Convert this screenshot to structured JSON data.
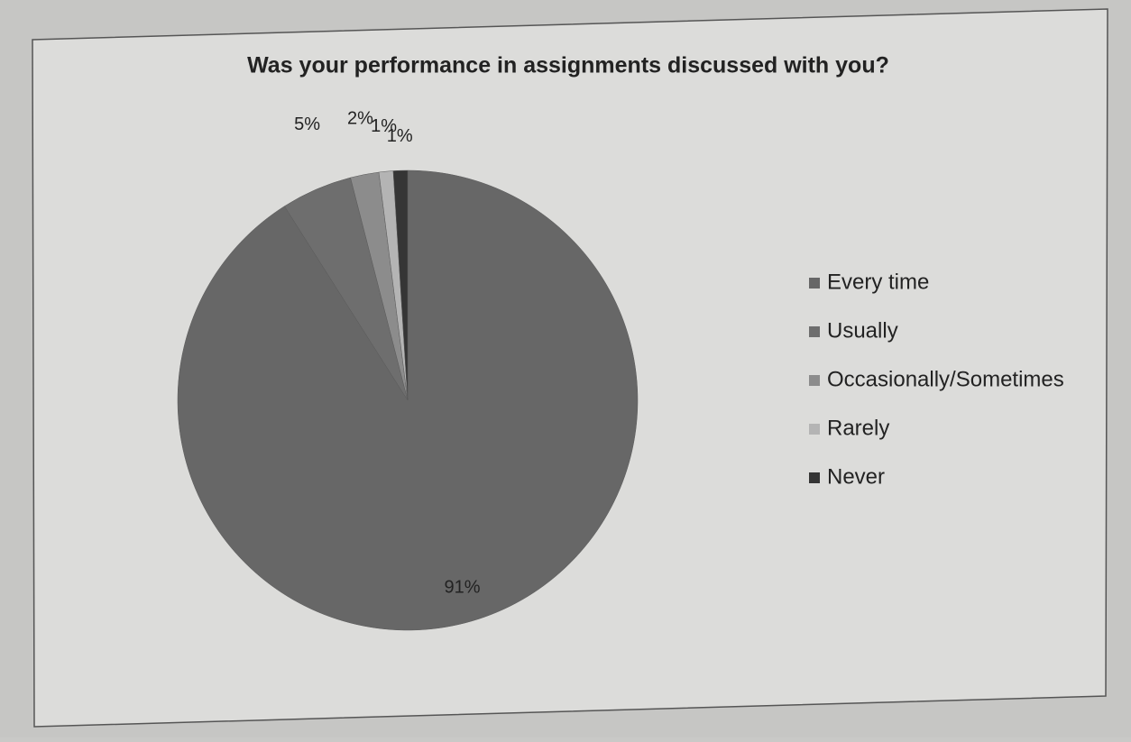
{
  "chart_data": {
    "type": "pie",
    "title": "Was your performance in assignments discussed with you?",
    "categories": [
      "Every time",
      "Usually",
      "Occasionally/Sometimes",
      "Rarely",
      "Never"
    ],
    "values": [
      91,
      5,
      2,
      1,
      1
    ],
    "value_labels": [
      "91%",
      "5%",
      "2%",
      "1%",
      "1%"
    ],
    "colors": [
      "#676767",
      "#6e6e6e",
      "#8c8c8c",
      "#b4b4b4",
      "#353535"
    ],
    "legend": "right"
  }
}
